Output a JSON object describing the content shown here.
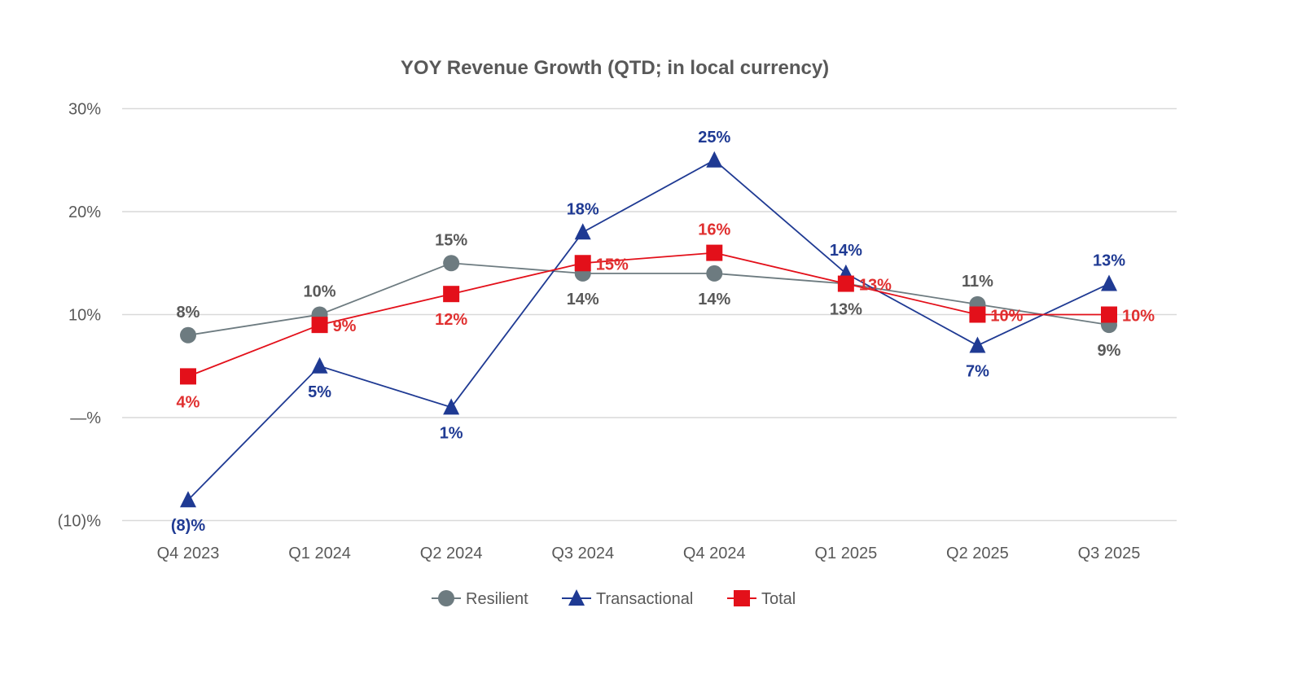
{
  "chart_data": {
    "type": "line",
    "title": "YOY Revenue Growth (QTD; in local currency)",
    "xlabel": "",
    "ylabel": "",
    "categories": [
      "Q4 2023",
      "Q1 2024",
      "Q2 2024",
      "Q3 2024",
      "Q4 2024",
      "Q1 2025",
      "Q2 2025",
      "Q3 2025"
    ],
    "ylim": [
      -10,
      30
    ],
    "yticks": [
      30,
      20,
      10,
      0,
      -10
    ],
    "ytick_labels": [
      "30%",
      "20%",
      "10%",
      "—%",
      "(10)%"
    ],
    "grid": true,
    "legend_position": "bottom",
    "series": [
      {
        "name": "Resilient",
        "marker": "circle",
        "color": "#6D7B80",
        "values": [
          8,
          10,
          15,
          14,
          14,
          13,
          11,
          9
        ],
        "labels": [
          "8%",
          "10%",
          "15%",
          "14%",
          "14%",
          "13%",
          "11%",
          "9%"
        ],
        "label_color": "#595959"
      },
      {
        "name": "Transactional",
        "marker": "triangle",
        "color": "#1F3A93",
        "values": [
          -8,
          5,
          1,
          18,
          25,
          14,
          7,
          13
        ],
        "labels": [
          "(8)%",
          "5%",
          "1%",
          "18%",
          "25%",
          "14%",
          "7%",
          "13%"
        ],
        "label_color": "#1F3A93"
      },
      {
        "name": "Total",
        "marker": "square",
        "color": "#E3101A",
        "values": [
          4,
          9,
          12,
          15,
          16,
          13,
          10,
          10
        ],
        "labels": [
          "4%",
          "9%",
          "12%",
          "15%",
          "16%",
          "13%",
          "10%",
          "10%"
        ],
        "label_color": "#E03030"
      }
    ]
  }
}
